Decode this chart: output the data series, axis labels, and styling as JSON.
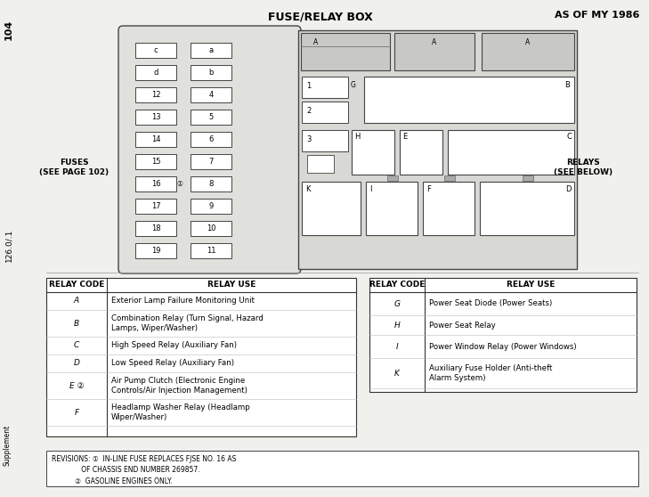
{
  "title_center": "FUSE/RELAY BOX",
  "title_right": "AS OF MY 1986",
  "page_num_top": "104",
  "page_num_mid": "126.0/.1",
  "supplement_label": "Supplement",
  "fuses_label": "FUSES\n(SEE PAGE 102)",
  "relays_label": "RELAYS\n(SEE BELOW)",
  "fuse_left_labels": [
    "c",
    "d",
    "12",
    "13",
    "14",
    "15",
    "16",
    "17",
    "18",
    "19"
  ],
  "fuse_right_labels": [
    "a",
    "b",
    "4",
    "5",
    "6",
    "7",
    "8",
    "9",
    "10",
    "11"
  ],
  "fuse16_note": "①",
  "bg_color": "#e8e8e4",
  "white": "#ffffff",
  "dark": "#222222",
  "mid_gray": "#aaaaaa"
}
